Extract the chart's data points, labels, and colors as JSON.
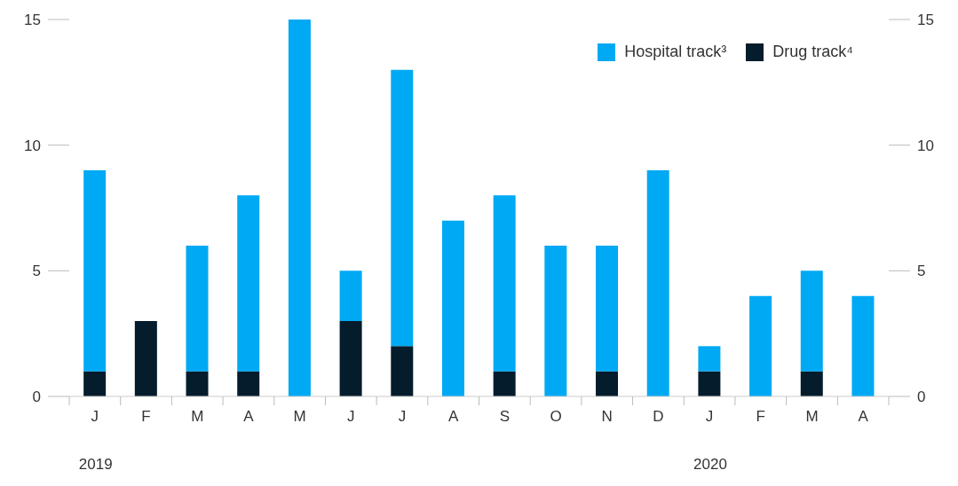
{
  "chart_data": {
    "type": "bar",
    "stacked": true,
    "categories": [
      "J",
      "F",
      "M",
      "A",
      "M",
      "J",
      "J",
      "A",
      "S",
      "O",
      "N",
      "D",
      "J",
      "F",
      "M",
      "A"
    ],
    "series": [
      {
        "name": "Drug track⁴",
        "color": "#051c2c",
        "values": [
          1,
          3,
          1,
          1,
          0,
          3,
          2,
          0,
          1,
          0,
          1,
          0,
          1,
          0,
          1,
          0
        ]
      },
      {
        "name": "Hospital track³",
        "color": "#00a9f4",
        "values": [
          8,
          0,
          5,
          7,
          15,
          2,
          11,
          7,
          7,
          6,
          5,
          9,
          1,
          4,
          4,
          4
        ]
      }
    ],
    "ylim": [
      0,
      15
    ],
    "yticks": [
      0,
      5,
      10,
      15
    ],
    "y2lim": [
      0,
      15
    ],
    "y2ticks": [
      0,
      5,
      10,
      15
    ],
    "legend": "top right",
    "annotations": [
      "2019",
      "2020"
    ]
  }
}
